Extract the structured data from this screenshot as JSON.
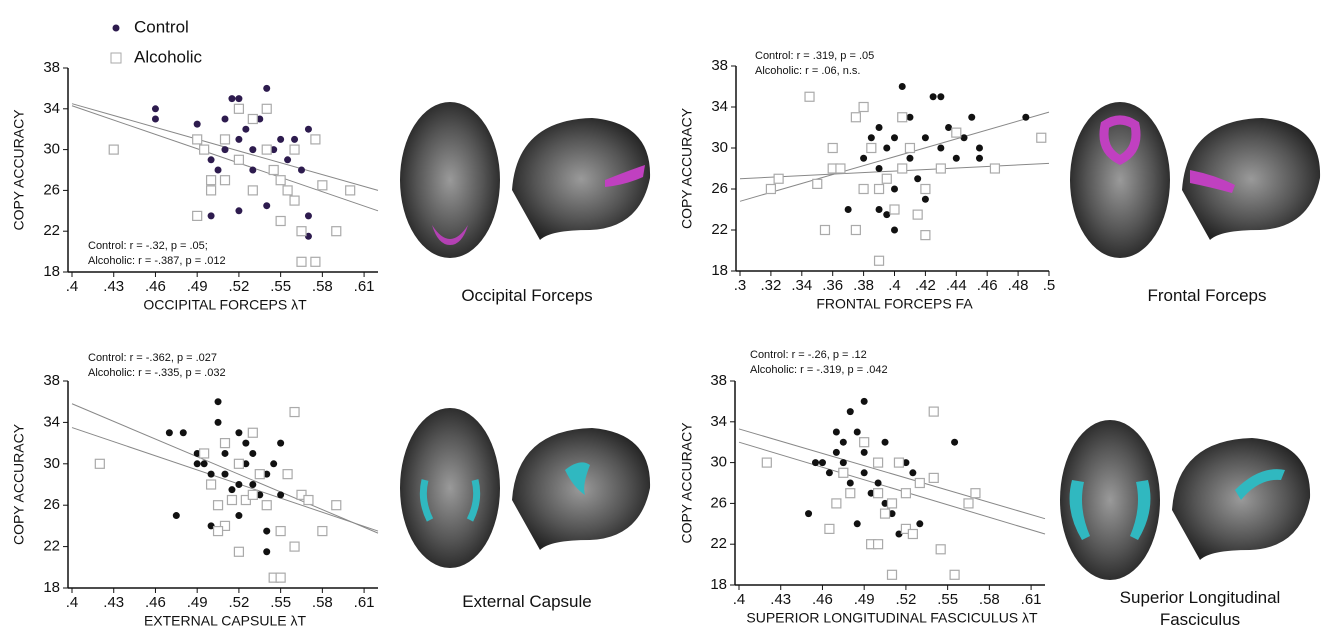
{
  "chart_data": [
    {
      "type": "scatter",
      "x_label": "OCCIPITAL FORCEPS λT",
      "y_label": "COPY ACCURACY",
      "region_label": "Occipital Forceps",
      "annotations": [
        "Control: r = -.32, p = .05;",
        "Alcoholic: r = -.387, p = .012"
      ],
      "legend": "upper left",
      "xlim": [
        0.4,
        0.62
      ],
      "ylim": [
        18,
        38
      ],
      "xticks": [
        {
          "value": 0.4,
          "label": ".4"
        },
        {
          "value": 0.43,
          "label": ".43"
        },
        {
          "value": 0.46,
          "label": ".46"
        },
        {
          "value": 0.49,
          "label": ".49"
        },
        {
          "value": 0.52,
          "label": ".52"
        },
        {
          "value": 0.55,
          "label": ".55"
        },
        {
          "value": 0.58,
          "label": ".58"
        },
        {
          "value": 0.61,
          "label": ".61"
        }
      ],
      "yticks": [
        18,
        22,
        26,
        30,
        34,
        38
      ],
      "series": [
        {
          "name": "Control",
          "color": "#2d1b4e",
          "marker": "circle",
          "x": [
            0.46,
            0.46,
            0.49,
            0.49,
            0.5,
            0.5,
            0.505,
            0.51,
            0.51,
            0.515,
            0.52,
            0.52,
            0.525,
            0.53,
            0.53,
            0.535,
            0.54,
            0.54,
            0.545,
            0.55,
            0.555,
            0.56,
            0.565,
            0.57,
            0.57,
            0.57,
            0.52,
            0.54,
            0.5,
            0.55
          ],
          "y": [
            34,
            33,
            32.5,
            31,
            29,
            27,
            28,
            30,
            33,
            35,
            35,
            31,
            32,
            30,
            28,
            33,
            36,
            30,
            30,
            31,
            29,
            31,
            28,
            32,
            23.5,
            21.5,
            24,
            24.5,
            23.5,
            27
          ]
        },
        {
          "name": "Alcoholic",
          "color": "#aaaaaa",
          "marker": "square",
          "x": [
            0.43,
            0.49,
            0.495,
            0.5,
            0.51,
            0.51,
            0.52,
            0.52,
            0.53,
            0.53,
            0.54,
            0.54,
            0.545,
            0.55,
            0.55,
            0.555,
            0.56,
            0.56,
            0.565,
            0.565,
            0.575,
            0.575,
            0.58,
            0.59,
            0.6,
            0.49,
            0.5
          ],
          "y": [
            30,
            31,
            30,
            26,
            27,
            31,
            34,
            29,
            33,
            26,
            34,
            30,
            28,
            27,
            23,
            26,
            30,
            25,
            22,
            19,
            19,
            31,
            26.5,
            22,
            26,
            23.5,
            27
          ]
        }
      ],
      "fit_lines": [
        {
          "x": [
            0.4,
            0.62
          ],
          "y": [
            34.5,
            26
          ]
        },
        {
          "x": [
            0.4,
            0.62
          ],
          "y": [
            34.3,
            24
          ]
        }
      ]
    },
    {
      "type": "scatter",
      "x_label": "FRONTAL FORCEPS FA",
      "y_label": "COPY ACCURACY",
      "region_label": "Frontal Forceps",
      "annotations": [
        "Control: r = .319, p = .05",
        "Alcoholic: r = .06, n.s."
      ],
      "xlim": [
        0.3,
        0.5
      ],
      "ylim": [
        18,
        38
      ],
      "xticks": [
        {
          "value": 0.3,
          "label": ".3"
        },
        {
          "value": 0.32,
          "label": ".32"
        },
        {
          "value": 0.34,
          "label": ".34"
        },
        {
          "value": 0.36,
          "label": ".36"
        },
        {
          "value": 0.38,
          "label": ".38"
        },
        {
          "value": 0.4,
          "label": ".4"
        },
        {
          "value": 0.42,
          "label": ".42"
        },
        {
          "value": 0.44,
          "label": ".44"
        },
        {
          "value": 0.46,
          "label": ".46"
        },
        {
          "value": 0.48,
          "label": ".48"
        },
        {
          "value": 0.5,
          "label": ".5"
        }
      ],
      "yticks": [
        18,
        22,
        26,
        30,
        34,
        38
      ],
      "series": [
        {
          "color": "#111111",
          "marker": "circle",
          "x": [
            0.37,
            0.38,
            0.385,
            0.39,
            0.39,
            0.395,
            0.4,
            0.4,
            0.4,
            0.405,
            0.41,
            0.41,
            0.415,
            0.42,
            0.42,
            0.425,
            0.43,
            0.43,
            0.435,
            0.44,
            0.445,
            0.45,
            0.455,
            0.455,
            0.485,
            0.39,
            0.395
          ],
          "y": [
            24,
            29,
            31,
            32,
            28,
            30,
            26,
            31,
            22,
            36,
            33,
            29,
            27,
            31,
            25,
            35,
            35,
            30,
            32,
            29,
            31,
            33,
            30,
            29,
            33,
            24,
            23.5
          ]
        },
        {
          "color": "#aaaaaa",
          "marker": "square",
          "x": [
            0.32,
            0.325,
            0.345,
            0.35,
            0.355,
            0.36,
            0.36,
            0.365,
            0.375,
            0.375,
            0.38,
            0.385,
            0.39,
            0.39,
            0.395,
            0.4,
            0.405,
            0.405,
            0.41,
            0.415,
            0.42,
            0.42,
            0.43,
            0.44,
            0.465,
            0.495,
            0.38
          ],
          "y": [
            26,
            27,
            35,
            26.5,
            22,
            28,
            30,
            28,
            33,
            22,
            34,
            30,
            19,
            26,
            27,
            24,
            28,
            33,
            30,
            23.5,
            26,
            21.5,
            28,
            31.5,
            28,
            31,
            26
          ]
        }
      ],
      "fit_lines": [
        {
          "x": [
            0.3,
            0.5
          ],
          "y": [
            24.8,
            33.5
          ]
        },
        {
          "x": [
            0.3,
            0.5
          ],
          "y": [
            27,
            28.5
          ]
        }
      ]
    },
    {
      "type": "scatter",
      "x_label": "EXTERNAL CAPSULE λT",
      "y_label": "COPY ACCURACY",
      "region_label": "External Capsule",
      "annotations": [
        "Control: r = -.362, p = .027",
        "Alcoholic: r = -.335, p = .032"
      ],
      "xlim": [
        0.4,
        0.62
      ],
      "ylim": [
        18,
        38
      ],
      "xticks": [
        {
          "value": 0.4,
          "label": ".4"
        },
        {
          "value": 0.43,
          "label": ".43"
        },
        {
          "value": 0.46,
          "label": ".46"
        },
        {
          "value": 0.49,
          "label": ".49"
        },
        {
          "value": 0.52,
          "label": ".52"
        },
        {
          "value": 0.55,
          "label": ".55"
        },
        {
          "value": 0.58,
          "label": ".58"
        },
        {
          "value": 0.61,
          "label": ".61"
        }
      ],
      "yticks": [
        18,
        22,
        26,
        30,
        34,
        38
      ],
      "series": [
        {
          "color": "#111111",
          "marker": "circle",
          "x": [
            0.47,
            0.475,
            0.48,
            0.49,
            0.49,
            0.495,
            0.5,
            0.5,
            0.505,
            0.505,
            0.51,
            0.51,
            0.515,
            0.52,
            0.52,
            0.52,
            0.525,
            0.525,
            0.53,
            0.53,
            0.535,
            0.54,
            0.54,
            0.54,
            0.545,
            0.55,
            0.55
          ],
          "y": [
            33,
            25,
            33,
            31,
            30,
            30,
            29,
            24,
            34,
            36,
            31,
            29,
            27.5,
            33,
            28,
            25,
            32,
            30,
            31,
            28,
            27,
            29,
            23.5,
            21.5,
            30,
            32,
            27
          ]
        },
        {
          "color": "#aaaaaa",
          "marker": "square",
          "x": [
            0.42,
            0.495,
            0.5,
            0.505,
            0.51,
            0.51,
            0.515,
            0.52,
            0.525,
            0.53,
            0.53,
            0.535,
            0.54,
            0.545,
            0.55,
            0.55,
            0.555,
            0.56,
            0.56,
            0.565,
            0.57,
            0.58,
            0.59,
            0.505,
            0.52
          ],
          "y": [
            30,
            31,
            28,
            26,
            24,
            32,
            26.5,
            21.5,
            26.5,
            27,
            33,
            29,
            26,
            19,
            19,
            23.5,
            29,
            22,
            35,
            27,
            26.5,
            23.5,
            26,
            23.5,
            30
          ]
        }
      ],
      "fit_lines": [
        {
          "x": [
            0.4,
            0.62
          ],
          "y": [
            35.8,
            23.3
          ]
        },
        {
          "x": [
            0.4,
            0.62
          ],
          "y": [
            33.5,
            23.5
          ]
        }
      ]
    },
    {
      "type": "scatter",
      "x_label": "SUPERIOR LONGITUDINAL FASCICULUS λT",
      "y_label": "COPY ACCURACY",
      "region_label": "Superior Longitudinal Fasciculus",
      "annotations": [
        "Control: r = -.26, p = .12",
        "Alcoholic: r = -.319, p = .042"
      ],
      "xlim": [
        0.4,
        0.62
      ],
      "ylim": [
        18,
        38
      ],
      "xticks": [
        {
          "value": 0.4,
          "label": ".4"
        },
        {
          "value": 0.43,
          "label": ".43"
        },
        {
          "value": 0.46,
          "label": ".46"
        },
        {
          "value": 0.49,
          "label": ".49"
        },
        {
          "value": 0.52,
          "label": ".52"
        },
        {
          "value": 0.55,
          "label": ".55"
        },
        {
          "value": 0.58,
          "label": ".58"
        },
        {
          "value": 0.61,
          "label": ".61"
        }
      ],
      "yticks": [
        18,
        22,
        26,
        30,
        34,
        38
      ],
      "series": [
        {
          "color": "#111111",
          "marker": "circle",
          "x": [
            0.45,
            0.455,
            0.46,
            0.465,
            0.47,
            0.47,
            0.475,
            0.475,
            0.48,
            0.48,
            0.485,
            0.485,
            0.49,
            0.49,
            0.49,
            0.495,
            0.5,
            0.5,
            0.505,
            0.505,
            0.51,
            0.515,
            0.52,
            0.525,
            0.53,
            0.545,
            0.555
          ],
          "y": [
            25,
            30,
            30,
            29,
            33,
            31,
            32,
            30,
            35,
            28,
            33,
            24,
            36,
            31,
            29,
            27,
            30,
            28,
            32,
            26,
            25,
            23,
            30,
            29,
            24,
            21.5,
            32
          ]
        },
        {
          "color": "#aaaaaa",
          "marker": "square",
          "x": [
            0.42,
            0.465,
            0.47,
            0.475,
            0.48,
            0.49,
            0.495,
            0.5,
            0.5,
            0.505,
            0.51,
            0.51,
            0.515,
            0.52,
            0.52,
            0.525,
            0.53,
            0.54,
            0.54,
            0.545,
            0.555,
            0.565,
            0.57,
            0.5
          ],
          "y": [
            30,
            23.5,
            26,
            29,
            27,
            32,
            22,
            22,
            27,
            25,
            26,
            19,
            30,
            23.5,
            27,
            23,
            28,
            35,
            28.5,
            21.5,
            19,
            26,
            27,
            30
          ]
        }
      ],
      "fit_lines": [
        {
          "x": [
            0.4,
            0.62
          ],
          "y": [
            33.3,
            24.5
          ]
        },
        {
          "x": [
            0.4,
            0.62
          ],
          "y": [
            32,
            23
          ]
        }
      ]
    }
  ]
}
